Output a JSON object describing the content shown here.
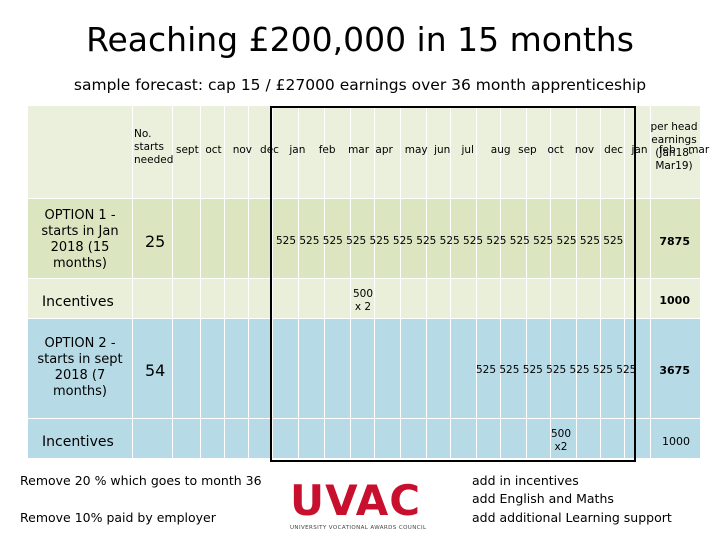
{
  "title": "Reaching £200,000 in 15 months",
  "subtitle": "sample forecast: cap 15 / £27000 earnings over 36 month apprenticeship",
  "header": {
    "no_starts": "No. starts needed",
    "months": [
      "sept",
      "oct",
      "nov",
      "dec",
      "jan",
      "feb",
      "mar",
      "apr",
      "may",
      "jun",
      "jul",
      "aug",
      "sep",
      "oct",
      "nov",
      "dec",
      "jan",
      "feb",
      "mar"
    ],
    "per_head": "per head earnings (Jan18-Mar19)"
  },
  "rows": {
    "option1": {
      "label": "OPTION 1 - starts in Jan 2018 (15 months)",
      "starts": "25",
      "values": "525 525 525 525 525 525 525 525 525 525 525 525 525 525 525",
      "total": "7875"
    },
    "incentives1": {
      "label": "Incentives",
      "note_line1": "500",
      "note_line2": "x 2",
      "total": "1000"
    },
    "option2": {
      "label": "OPTION 2 - starts in sept 2018 (7 months)",
      "starts": "54",
      "values": "525 525 525 525 525 525 525",
      "total": "3675"
    },
    "incentives2": {
      "label": "Incentives",
      "note_line1": "500",
      "note_line2": "x2",
      "total": "1000"
    }
  },
  "notes_left": [
    "Remove 20 % which goes to month 36",
    "Remove 10% paid by employer"
  ],
  "notes_right": [
    "add in incentives",
    "add English and Maths",
    "add additional Learning support"
  ],
  "logo": {
    "text": "UVAC",
    "sub": "UNIVERSITY VOCATIONAL AWARDS COUNCIL"
  },
  "colors": {
    "band_light": "#e9efd9",
    "band_green": "#dbe6c1",
    "band_blue": "#b7dbe6",
    "logo_red": "#c8102e"
  }
}
